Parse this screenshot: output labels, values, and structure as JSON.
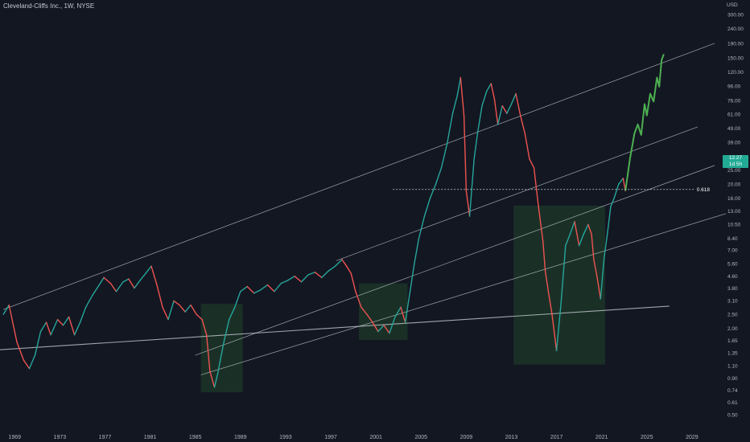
{
  "header": {
    "title": "Cleveland-Cliffs Inc., 1W, NYSE"
  },
  "price_badge": {
    "price": "12.27",
    "countdown": "1d 5h"
  },
  "colors": {
    "background": "#131722",
    "up_candle": "#26a69a",
    "down_candle": "#ef5350",
    "projection": "#4caf50",
    "zone_fill": "#1e3a2a",
    "trendline": "#d1d4dc",
    "price_badge": "#22ab94"
  },
  "chart_data": {
    "type": "line",
    "title": "Cleveland-Cliffs Inc., 1W, NYSE",
    "scale": "log",
    "currency": "USD",
    "ylim": [
      0.42,
      380
    ],
    "xlim": [
      1967.7,
      2031.5
    ],
    "y_ticks": [
      "380.00",
      "300.00",
      "240.00",
      "190.00",
      "150.00",
      "120.00",
      "96.00",
      "76.00",
      "61.00",
      "49.00",
      "39.00",
      "31.00",
      "25.00",
      "20.00",
      "16.00",
      "13.00",
      "10.50",
      "8.40",
      "7.00",
      "5.60",
      "4.60",
      "3.80",
      "3.10",
      "2.50",
      "2.00",
      "1.65",
      "1.35",
      "1.10",
      "0.90",
      "0.74",
      "0.61",
      "0.50"
    ],
    "x_ticks": [
      "1969",
      "1973",
      "1977",
      "1981",
      "1985",
      "1989",
      "1993",
      "1997",
      "2001",
      "2005",
      "2009",
      "2013",
      "2017",
      "2021",
      "2025",
      "2029"
    ],
    "series": [
      {
        "role": "price",
        "x": [
          1968.0,
          1968.5,
          1969.2,
          1969.8,
          1970.3,
          1970.8,
          1971.3,
          1971.8,
          1972.2,
          1972.8,
          1973.3,
          1973.8,
          1974.3,
          1974.8,
          1975.3,
          1975.9,
          1976.4,
          1976.9,
          1977.5,
          1978.0,
          1978.6,
          1979.1,
          1979.6,
          1980.1,
          1980.6,
          1981.1,
          1981.6,
          1982.1,
          1982.6,
          1983.1,
          1983.6,
          1984.1,
          1984.6,
          1985.1,
          1985.6,
          1986.0,
          1986.3,
          1986.7,
          1987.0,
          1987.3,
          1987.6,
          1988.0,
          1988.5,
          1989.0,
          1989.6,
          1990.2,
          1990.8,
          1991.4,
          1992.0,
          1992.6,
          1993.2,
          1993.8,
          1994.4,
          1995.0,
          1995.6,
          1996.2,
          1996.8,
          1997.4,
          1998.0,
          1998.4,
          1998.8,
          1999.2,
          1999.7,
          2000.2,
          2000.7,
          2001.2,
          2001.7,
          2002.2,
          2002.7,
          2003.2,
          2003.6,
          2004.0,
          2004.4,
          2004.8,
          2005.3,
          2005.8,
          2006.3,
          2006.8,
          2007.3,
          2007.8,
          2008.2,
          2008.5,
          2008.8,
          2009.0,
          2009.3,
          2009.7,
          2010.0,
          2010.4,
          2010.8,
          2011.2,
          2011.5,
          2011.8,
          2012.2,
          2012.6,
          2013.0,
          2013.4,
          2013.8,
          2014.2,
          2014.6,
          2015.0,
          2015.4,
          2015.8,
          2016.0,
          2016.3,
          2016.6,
          2017.0,
          2017.4,
          2017.8,
          2018.2,
          2018.6,
          2019.0,
          2019.4,
          2019.8,
          2020.1,
          2020.3,
          2020.6,
          2020.9,
          2021.2,
          2021.5,
          2021.8,
          2022.1,
          2022.5,
          2022.9,
          2023.1
        ],
        "y": [
          2.5,
          2.9,
          1.6,
          1.2,
          1.05,
          1.3,
          1.9,
          2.2,
          1.8,
          2.3,
          2.1,
          2.4,
          1.8,
          2.2,
          2.8,
          3.4,
          3.9,
          4.5,
          4.1,
          3.6,
          4.2,
          4.4,
          3.8,
          4.3,
          4.8,
          5.4,
          4.0,
          2.8,
          2.3,
          3.1,
          2.9,
          2.6,
          2.9,
          2.5,
          2.3,
          1.8,
          1.0,
          0.78,
          0.98,
          1.3,
          1.7,
          2.3,
          2.8,
          3.6,
          3.9,
          3.5,
          3.7,
          4.0,
          3.6,
          4.1,
          4.3,
          4.6,
          4.2,
          4.7,
          4.9,
          4.5,
          5.0,
          5.4,
          6.0,
          5.4,
          4.8,
          3.6,
          2.8,
          2.5,
          2.2,
          1.9,
          2.1,
          1.85,
          2.4,
          2.8,
          2.2,
          3.5,
          5.6,
          8.4,
          12.0,
          16.0,
          20.0,
          26.0,
          38.0,
          62.0,
          82.0,
          110.0,
          60.0,
          18.0,
          12.0,
          30.0,
          45.0,
          70.0,
          88.0,
          100.0,
          78.0,
          52.0,
          70.0,
          62.0,
          72.0,
          85.0,
          60.0,
          45.0,
          30.0,
          26.0,
          14.0,
          8.0,
          5.0,
          3.5,
          2.5,
          1.4,
          3.0,
          7.5,
          9.0,
          11.0,
          7.5,
          9.0,
          10.5,
          9.0,
          6.0,
          4.5,
          3.2,
          6.0,
          9.0,
          14.0,
          16.0,
          20.0,
          22.0,
          18.0
        ]
      },
      {
        "role": "projection",
        "x": [
          2023.1,
          2023.5,
          2023.9,
          2024.2,
          2024.5,
          2024.8,
          2025.0,
          2025.3,
          2025.6,
          2025.9,
          2026.1,
          2026.3,
          2026.5
        ],
        "y": [
          18.0,
          30.0,
          45.0,
          52.0,
          44.0,
          72.0,
          60.0,
          85.0,
          75.0,
          110.0,
          95.0,
          145.0,
          160.0
        ]
      }
    ],
    "trendlines": [
      {
        "role": "upper-channel",
        "x": [
          1968.0,
          2031.0
        ],
        "y": [
          2.7,
          190.0
        ]
      },
      {
        "role": "channel",
        "x": [
          1997.5,
          2029.5
        ],
        "y": [
          5.9,
          50.0
        ]
      },
      {
        "role": "channel",
        "x": [
          1985.0,
          2031.0
        ],
        "y": [
          1.3,
          27.0
        ]
      },
      {
        "role": "channel",
        "x": [
          1985.5,
          2032.0
        ],
        "y": [
          0.95,
          12.5
        ]
      },
      {
        "role": "support",
        "x": [
          1967.7,
          2027.0
        ],
        "y": [
          1.42,
          2.85
        ]
      }
    ],
    "levels": [
      {
        "label": "0.618",
        "value": 18.4,
        "x": [
          2002.5,
          2029.2
        ]
      }
    ],
    "zones": [
      {
        "x": [
          1985.5,
          1989.2
        ],
        "y": [
          0.72,
          2.95
        ]
      },
      {
        "x": [
          1999.5,
          2003.8
        ],
        "y": [
          1.66,
          4.1
        ]
      },
      {
        "x": [
          2013.2,
          2021.3
        ],
        "y": [
          1.12,
          14.2
        ]
      }
    ]
  }
}
